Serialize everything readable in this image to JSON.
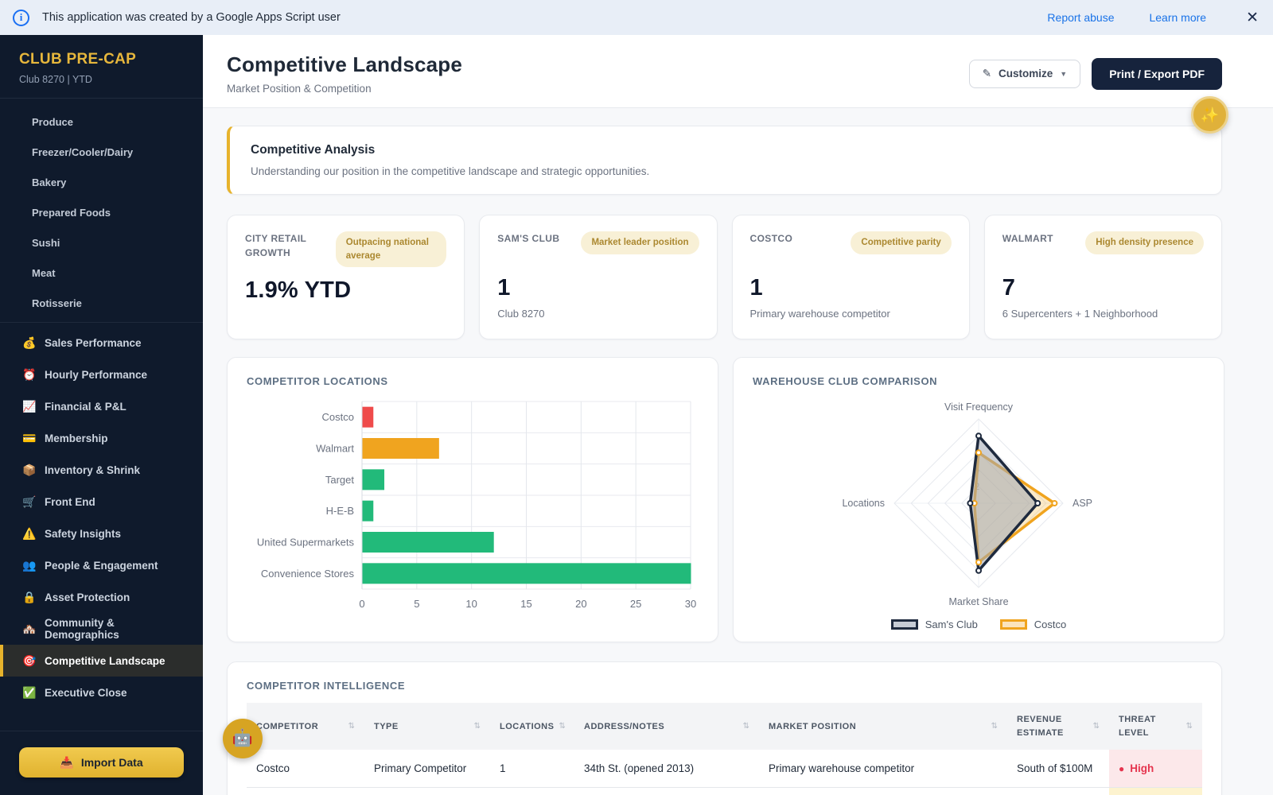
{
  "banner": {
    "message": "This application was created by a Google Apps Script user",
    "report_abuse": "Report abuse",
    "learn_more": "Learn more",
    "close": "✕"
  },
  "sidebar": {
    "brand": "CLUB PRE-CAP",
    "brand_sub": "Club 8270 | YTD",
    "group1": [
      "Produce",
      "Freezer/Cooler/Dairy",
      "Bakery",
      "Prepared Foods",
      "Sushi",
      "Meat",
      "Rotisserie"
    ],
    "group2": [
      {
        "icon": "💰",
        "icon_name": "money-bag-icon",
        "label": "Sales Performance",
        "active": false
      },
      {
        "icon": "⏰",
        "icon_name": "alarm-clock-icon",
        "label": "Hourly Performance",
        "active": false
      },
      {
        "icon": "📈",
        "icon_name": "chart-increasing-icon",
        "label": "Financial & P&L",
        "active": false
      },
      {
        "icon": "💳",
        "icon_name": "credit-card-icon",
        "label": "Membership",
        "active": false
      },
      {
        "icon": "📦",
        "icon_name": "package-icon",
        "label": "Inventory & Shrink",
        "active": false
      },
      {
        "icon": "🛒",
        "icon_name": "shopping-cart-icon",
        "label": "Front End",
        "active": false
      },
      {
        "icon": "⚠️",
        "icon_name": "warning-icon",
        "label": "Safety Insights",
        "active": false
      },
      {
        "icon": "👥",
        "icon_name": "people-icon",
        "label": "People & Engagement",
        "active": false
      },
      {
        "icon": "🔒",
        "icon_name": "lock-icon",
        "label": "Asset Protection",
        "active": false
      },
      {
        "icon": "🏘️",
        "icon_name": "houses-icon",
        "label": "Community & Demographics",
        "active": false
      },
      {
        "icon": "🎯",
        "icon_name": "target-icon",
        "label": "Competitive Landscape",
        "active": true
      },
      {
        "icon": "✅",
        "icon_name": "check-icon",
        "label": "Executive Close",
        "active": false
      }
    ],
    "import_icon": "📥",
    "import_label": "Import Data"
  },
  "header": {
    "title": "Competitive Landscape",
    "subtitle": "Market Position & Competition",
    "customize_icon": "✎",
    "customize": "Customize",
    "caret": "▼",
    "print": "Print / Export PDF"
  },
  "fabs": {
    "sparkle_icon": "✨",
    "robot_icon": "🤖"
  },
  "callout": {
    "title": "Competitive Analysis",
    "body": "Understanding our position in the competitive landscape and strategic opportunities."
  },
  "stat_cards": [
    {
      "label": "CITY RETAIL GROWTH",
      "badge": "Outpacing national average",
      "value": "1.9% YTD",
      "sub": ""
    },
    {
      "label": "SAM'S CLUB",
      "badge": "Market leader position",
      "value": "1",
      "sub": "Club 8270"
    },
    {
      "label": "COSTCO",
      "badge": "Competitive parity",
      "value": "1",
      "sub": "Primary warehouse competitor"
    },
    {
      "label": "WALMART",
      "badge": "High density presence",
      "value": "7",
      "sub": "6 Supercenters + 1 Neighborhood"
    }
  ],
  "chart_data": [
    {
      "type": "bar",
      "orientation": "horizontal",
      "title": "COMPETITOR LOCATIONS",
      "categories": [
        "Costco",
        "Walmart",
        "Target",
        "H-E-B",
        "United Supermarkets",
        "Convenience Stores"
      ],
      "values": [
        1,
        7,
        2,
        1,
        12,
        30
      ],
      "bar_colors": [
        "#ef4b4b",
        "#f0a41f",
        "#22ba7a",
        "#22ba7a",
        "#22ba7a",
        "#22ba7a"
      ],
      "xlim": [
        0,
        30
      ],
      "xticks": [
        0,
        5,
        10,
        15,
        20,
        25,
        30
      ],
      "grid": true
    },
    {
      "type": "radar",
      "title": "WAREHOUSE CLUB COMPARISON",
      "axes": [
        "Visit Frequency",
        "ASP",
        "Market Share",
        "Locations"
      ],
      "scale": {
        "min": 0,
        "max": 10,
        "rings": [
          2,
          4,
          6,
          8,
          10
        ],
        "visible_tick_labels": [
          "2",
          "4"
        ]
      },
      "series": [
        {
          "name": "Sam's Club",
          "values": [
            8,
            7,
            8,
            1
          ],
          "stroke": "#1e2a3e",
          "fill": "rgba(160,168,180,0.55)",
          "legend_fill": "#c6ccd5"
        },
        {
          "name": "Costco",
          "values": [
            6,
            9,
            7,
            0.5
          ],
          "stroke": "#f0a41f",
          "fill": "rgba(245,186,73,0.30)",
          "legend_fill": "#fbe4bd"
        }
      ],
      "legend_position": "bottom"
    }
  ],
  "table": {
    "title": "COMPETITOR INTELLIGENCE",
    "sort_icon": "⇅",
    "columns": [
      {
        "label": "COMPETITOR",
        "key": "competitor"
      },
      {
        "label": "TYPE",
        "key": "type"
      },
      {
        "label": "LOCATIONS",
        "key": "locations"
      },
      {
        "label": "ADDRESS/NOTES",
        "key": "address"
      },
      {
        "label": "MARKET POSITION",
        "key": "market_position"
      },
      {
        "label": "REVENUE ESTIMATE",
        "key": "revenue"
      },
      {
        "label": "THREAT LEVEL",
        "key": "threat"
      }
    ],
    "rows": [
      {
        "competitor": "Costco",
        "type": "Primary Competitor",
        "locations": "1",
        "address": "34th St. (opened 2013)",
        "market_position": "Primary warehouse competitor",
        "revenue": "South of $100M",
        "threat": {
          "label": "High",
          "dot": "●",
          "text_color": "#e5344e",
          "bg": "#fce8ea"
        }
      }
    ],
    "partial_next_row": {
      "threat_bg": "#fdf3cf"
    }
  }
}
